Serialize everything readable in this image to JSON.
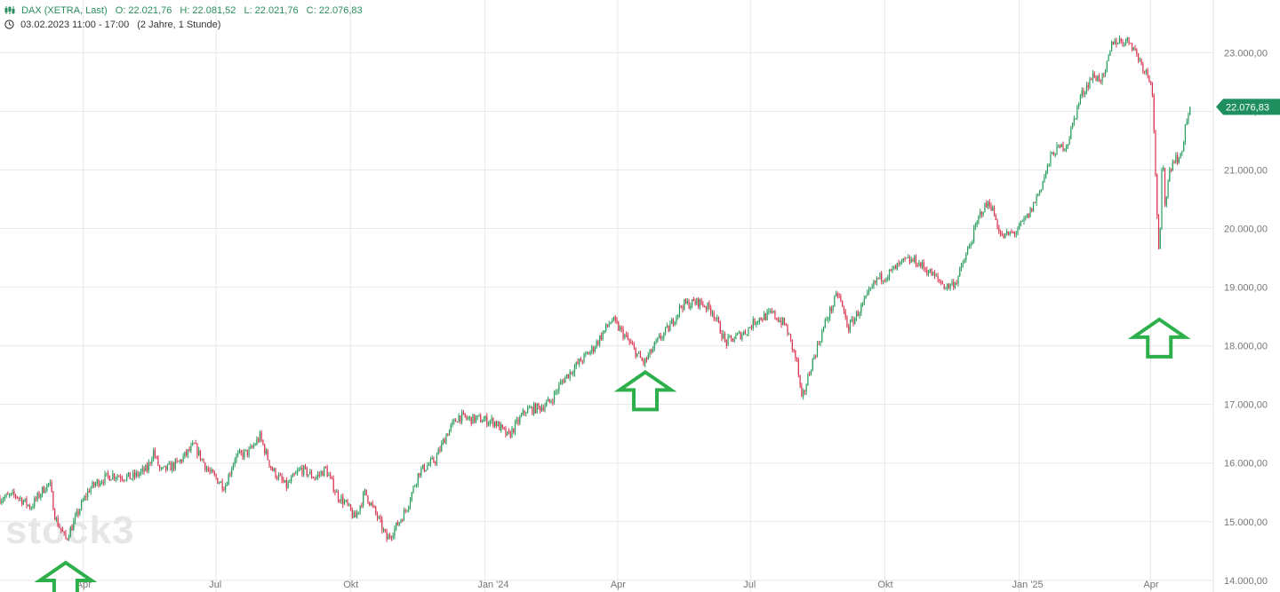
{
  "header": {
    "instrument": "DAX (XETRA, Last)",
    "open": "O: 22.021,76",
    "high": "H: 22.081,52",
    "low": "L: 22.021,76",
    "close": "C: 22.076,83",
    "range": "03.02.2023 11:00 - 17:00",
    "period": "(2 Jahre, 1 Stunde)"
  },
  "watermark": "stock3",
  "colors": {
    "up": "#2a9d5c",
    "down": "#d9344f",
    "header_text": "#2a8f5c",
    "grid": "#e8e8e8",
    "last_label_bg": "#1f8f5f",
    "arrow": "#2db04b"
  },
  "chart_data": {
    "type": "candlestick-line",
    "title": "DAX (XETRA, Last)",
    "y_tick_labels": [
      "14.000,00",
      "15.000,00",
      "16.000,00",
      "17.000,00",
      "18.000,00",
      "19.000,00",
      "20.000,00",
      "21.000,00",
      "22.000,00",
      "23.000,00"
    ],
    "y_tick_values": [
      14000,
      15000,
      16000,
      17000,
      18000,
      19000,
      20000,
      21000,
      22000,
      23000
    ],
    "x_tick_labels": [
      "Apr",
      "Jul",
      "Okt",
      "Jan '24",
      "Apr",
      "Jul",
      "Okt",
      "Jan '25",
      "Apr"
    ],
    "x_tick_dates": [
      "2023-04-01",
      "2023-07-01",
      "2023-10-01",
      "2024-01-01",
      "2024-04-01",
      "2024-07-01",
      "2024-10-01",
      "2025-01-01",
      "2025-04-01"
    ],
    "ylim": [
      13800,
      23900
    ],
    "xlim": [
      "2023-02-03",
      "2025-05-14"
    ],
    "last_value": 22076.83,
    "last_value_label": "22.076,83",
    "series": [
      {
        "values": [
          [
            "2023-02-03",
            15400
          ],
          [
            "2023-02-14",
            15450
          ],
          [
            "2023-02-24",
            15250
          ],
          [
            "2023-03-06",
            15600
          ],
          [
            "2023-03-09",
            15650
          ],
          [
            "2023-03-13",
            15050
          ],
          [
            "2023-03-20",
            14700
          ],
          [
            "2023-03-24",
            14900
          ],
          [
            "2023-03-31",
            15300
          ],
          [
            "2023-04-05",
            15550
          ],
          [
            "2023-04-12",
            15700
          ],
          [
            "2023-04-21",
            15800
          ],
          [
            "2023-05-04",
            15750
          ],
          [
            "2023-05-15",
            15900
          ],
          [
            "2023-05-19",
            16200
          ],
          [
            "2023-05-24",
            15850
          ],
          [
            "2023-06-05",
            16000
          ],
          [
            "2023-06-16",
            16300
          ],
          [
            "2023-06-26",
            15850
          ],
          [
            "2023-07-07",
            15600
          ],
          [
            "2023-07-14",
            16100
          ],
          [
            "2023-07-24",
            16200
          ],
          [
            "2023-07-31",
            16450
          ],
          [
            "2023-08-08",
            15900
          ],
          [
            "2023-08-18",
            15600
          ],
          [
            "2023-08-28",
            15900
          ],
          [
            "2023-09-07",
            15750
          ],
          [
            "2023-09-14",
            15900
          ],
          [
            "2023-09-22",
            15450
          ],
          [
            "2023-09-28",
            15300
          ],
          [
            "2023-10-04",
            15050
          ],
          [
            "2023-10-11",
            15500
          ],
          [
            "2023-10-20",
            15050
          ],
          [
            "2023-10-26",
            14700
          ],
          [
            "2023-11-01",
            14900
          ],
          [
            "2023-11-08",
            15200
          ],
          [
            "2023-11-17",
            15850
          ],
          [
            "2023-11-28",
            16050
          ],
          [
            "2023-12-06",
            16500
          ],
          [
            "2023-12-14",
            16800
          ],
          [
            "2023-12-21",
            16750
          ],
          [
            "2023-12-28",
            16750
          ],
          [
            "2024-01-08",
            16700
          ],
          [
            "2024-01-17",
            16450
          ],
          [
            "2024-01-29",
            16900
          ],
          [
            "2024-02-08",
            16950
          ],
          [
            "2024-02-15",
            17050
          ],
          [
            "2024-02-23",
            17400
          ],
          [
            "2024-03-05",
            17700
          ],
          [
            "2024-03-15",
            17950
          ],
          [
            "2024-03-28",
            18450
          ],
          [
            "2024-04-05",
            18200
          ],
          [
            "2024-04-16",
            17800
          ],
          [
            "2024-04-19",
            17700
          ],
          [
            "2024-04-29",
            18100
          ],
          [
            "2024-05-06",
            18300
          ],
          [
            "2024-05-15",
            18700
          ],
          [
            "2024-05-27",
            18750
          ],
          [
            "2024-06-05",
            18600
          ],
          [
            "2024-06-14",
            18050
          ],
          [
            "2024-06-21",
            18150
          ],
          [
            "2024-06-28",
            18250
          ],
          [
            "2024-07-05",
            18450
          ],
          [
            "2024-07-16",
            18550
          ],
          [
            "2024-07-25",
            18350
          ],
          [
            "2024-08-02",
            17700
          ],
          [
            "2024-08-05",
            17050
          ],
          [
            "2024-08-12",
            17700
          ],
          [
            "2024-08-22",
            18450
          ],
          [
            "2024-08-30",
            18900
          ],
          [
            "2024-09-06",
            18300
          ],
          [
            "2024-09-16",
            18700
          ],
          [
            "2024-09-26",
            19150
          ],
          [
            "2024-10-02",
            19200
          ],
          [
            "2024-10-15",
            19450
          ],
          [
            "2024-10-22",
            19450
          ],
          [
            "2024-11-01",
            19250
          ],
          [
            "2024-11-12",
            19000
          ],
          [
            "2024-11-19",
            19100
          ],
          [
            "2024-11-28",
            19700
          ],
          [
            "2024-12-06",
            20300
          ],
          [
            "2024-12-12",
            20450
          ],
          [
            "2024-12-20",
            19850
          ],
          [
            "2024-12-30",
            19950
          ],
          [
            "2025-01-08",
            20250
          ],
          [
            "2025-01-15",
            20650
          ],
          [
            "2025-01-24",
            21300
          ],
          [
            "2025-02-03",
            21450
          ],
          [
            "2025-02-12",
            22250
          ],
          [
            "2025-02-20",
            22600
          ],
          [
            "2025-02-28",
            22550
          ],
          [
            "2025-03-06",
            23200
          ],
          [
            "2025-03-18",
            23200
          ],
          [
            "2025-03-26",
            22800
          ],
          [
            "2025-04-02",
            22500
          ],
          [
            "2025-04-04",
            21200
          ],
          [
            "2025-04-07",
            19300
          ],
          [
            "2025-04-09",
            21300
          ],
          [
            "2025-04-11",
            20400
          ],
          [
            "2025-04-14",
            21000
          ],
          [
            "2025-04-17",
            21200
          ],
          [
            "2025-04-22",
            21200
          ],
          [
            "2025-04-25",
            21800
          ],
          [
            "2025-04-28",
            22000
          ]
        ]
      }
    ],
    "annotations": [
      {
        "type": "up-arrow",
        "date": "2023-03-20",
        "value": 14300
      },
      {
        "type": "up-arrow",
        "date": "2024-04-20",
        "value": 17550
      },
      {
        "type": "up-arrow",
        "date": "2025-04-07",
        "value": 18450
      }
    ]
  }
}
